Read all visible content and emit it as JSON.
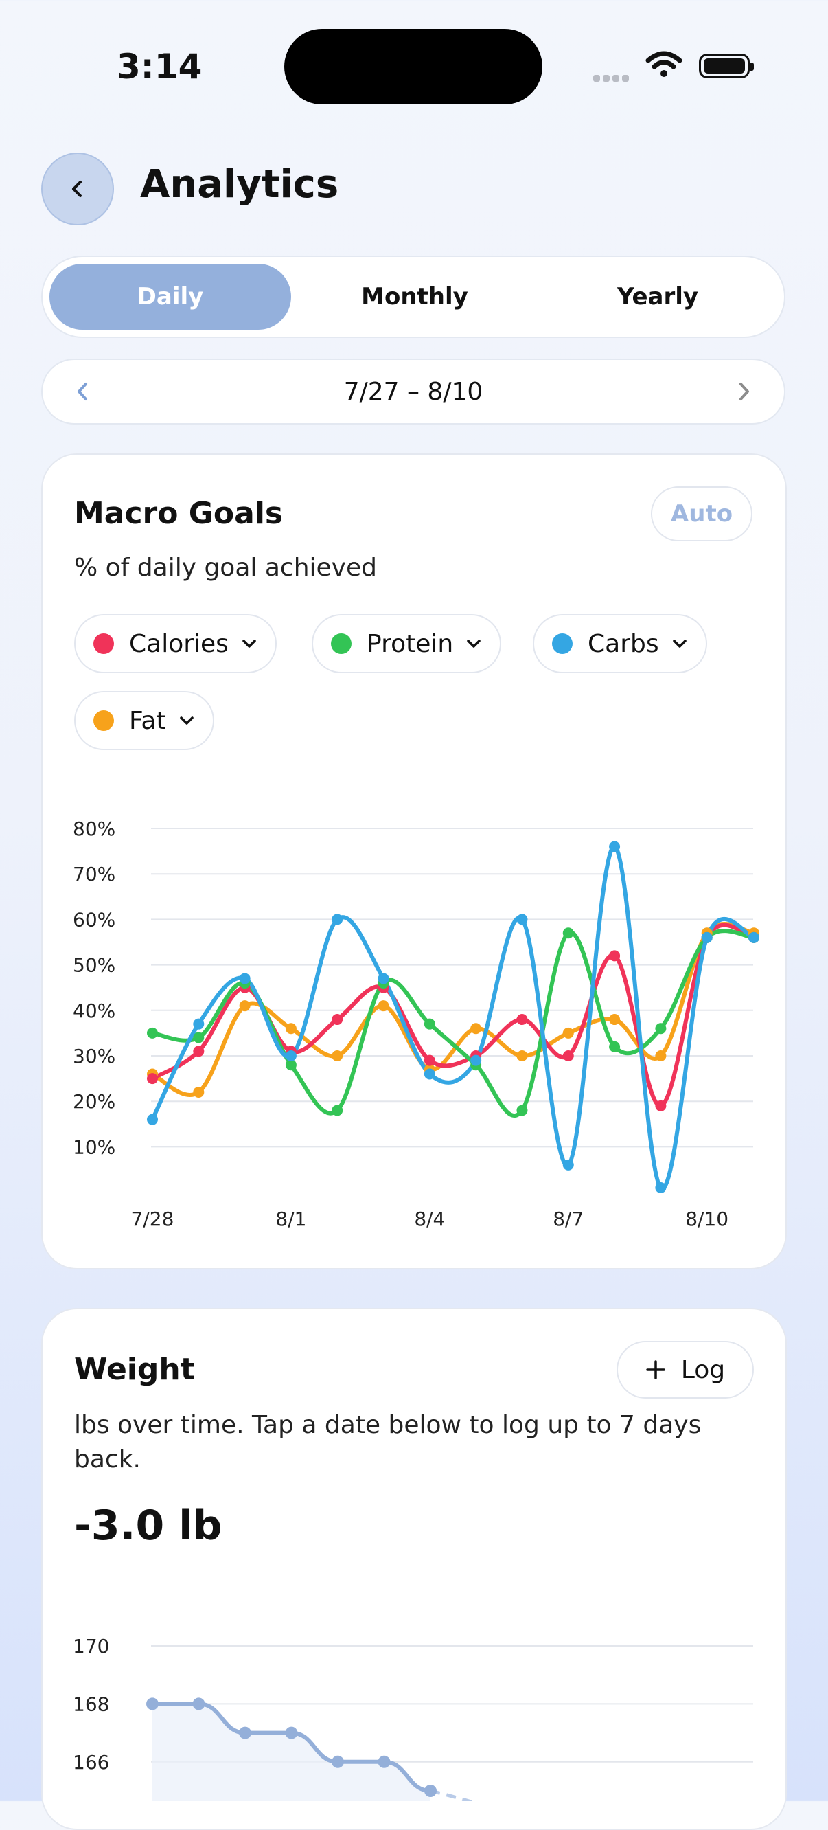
{
  "status": {
    "time": "3:14"
  },
  "header": {
    "title": "Analytics"
  },
  "tabs": [
    {
      "label": "Daily",
      "active": true
    },
    {
      "label": "Monthly",
      "active": false
    },
    {
      "label": "Yearly",
      "active": false
    }
  ],
  "date_range": "7/27 – 8/10",
  "macro_card": {
    "title": "Macro Goals",
    "subtitle": "% of daily goal achieved",
    "auto_label": "Auto",
    "filters": [
      {
        "label": "Calories",
        "color": "#f03359"
      },
      {
        "label": "Protein",
        "color": "#33c455"
      },
      {
        "label": "Carbs",
        "color": "#34a6e3"
      },
      {
        "label": "Fat",
        "color": "#f7a21b"
      }
    ]
  },
  "weight_card": {
    "title": "Weight",
    "log_label": "Log",
    "subtitle_line1": "lbs over time. Tap a date below to log up to 7 days",
    "subtitle_line2": "back.",
    "change": "-3.0 lb"
  },
  "chart_data": [
    {
      "type": "line",
      "ylim": [
        0,
        80
      ],
      "y_ticks": [
        "10%",
        "20%",
        "30%",
        "40%",
        "50%",
        "60%",
        "70%",
        "80%"
      ],
      "x_tick_labels": [
        "7/28",
        "8/1",
        "8/4",
        "8/7",
        "8/10"
      ],
      "x": [
        "7/28",
        "7/29",
        "7/30",
        "7/31",
        "8/1",
        "8/2",
        "8/3",
        "8/4",
        "8/5",
        "8/6",
        "8/7",
        "8/8",
        "8/9",
        "8/10"
      ],
      "series": [
        {
          "name": "Calories",
          "color": "#f03359",
          "values": [
            25,
            31,
            45,
            31,
            38,
            45,
            29,
            30,
            38,
            30,
            52,
            19,
            56,
            56
          ]
        },
        {
          "name": "Protein",
          "color": "#33c455",
          "values": [
            35,
            34,
            46,
            28,
            18,
            46,
            37,
            28,
            18,
            57,
            32,
            36,
            56,
            56
          ]
        },
        {
          "name": "Carbs",
          "color": "#34a6e3",
          "values": [
            16,
            37,
            47,
            30,
            60,
            47,
            26,
            29,
            60,
            6,
            76,
            1,
            56,
            56
          ]
        },
        {
          "name": "Fat",
          "color": "#f7a21b",
          "values": [
            26,
            22,
            41,
            36,
            30,
            41,
            27,
            36,
            30,
            35,
            38,
            30,
            57,
            57
          ]
        }
      ]
    },
    {
      "type": "line",
      "y_ticks": [
        "166",
        "168",
        "170"
      ],
      "series": [
        {
          "values": [
            168,
            168,
            167,
            167,
            166,
            166,
            165
          ]
        }
      ]
    }
  ]
}
